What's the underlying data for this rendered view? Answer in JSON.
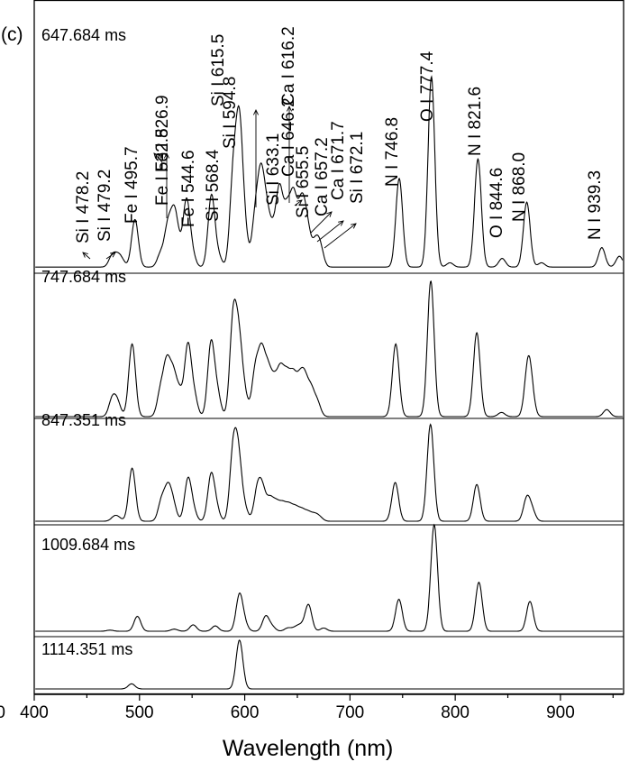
{
  "chart_data": {
    "type": "line",
    "panel_label": "(c)",
    "xlabel": "Wavelength (nm)",
    "ylabel": "",
    "xlim": [
      400,
      960
    ],
    "x_ticks": [
      400,
      500,
      600,
      700,
      800,
      900
    ],
    "x_tick_labels": [
      "400",
      "500",
      "600",
      "700",
      "800",
      "900"
    ],
    "left_cropped_tick_label": "0",
    "grid": false,
    "layout": "stacked panels, top to bottom",
    "peak_width_nm": 3.2,
    "series": [
      {
        "name": "647.684 ms",
        "baseline": 0.02,
        "peaks": [
          [
            474.0,
            0.05
          ],
          [
            479.0,
            0.04
          ],
          [
            483.0,
            0.03
          ],
          [
            495.7,
            0.22
          ],
          [
            520.0,
            0.06
          ],
          [
            526.9,
            0.18
          ],
          [
            532.8,
            0.22
          ],
          [
            537.0,
            0.08
          ],
          [
            544.6,
            0.3
          ],
          [
            550.0,
            0.06
          ],
          [
            568.4,
            0.33
          ],
          [
            575.0,
            0.05
          ],
          [
            589.0,
            0.4
          ],
          [
            594.8,
            0.62
          ],
          [
            600.0,
            0.15
          ],
          [
            610.0,
            0.22
          ],
          [
            615.5,
            0.38
          ],
          [
            621.0,
            0.22
          ],
          [
            627.0,
            0.14
          ],
          [
            633.1,
            0.34
          ],
          [
            640.0,
            0.24
          ],
          [
            646.2,
            0.3
          ],
          [
            652.0,
            0.15
          ],
          [
            655.5,
            0.2
          ],
          [
            660.0,
            0.14
          ],
          [
            667.0,
            0.1
          ],
          [
            671.7,
            0.09
          ],
          [
            746.8,
            0.41
          ],
          [
            777.4,
            0.88
          ],
          [
            795.0,
            0.02
          ],
          [
            821.6,
            0.5
          ],
          [
            844.6,
            0.04
          ],
          [
            868.0,
            0.3
          ],
          [
            882.0,
            0.02
          ],
          [
            939.3,
            0.09
          ],
          [
            956.0,
            0.05
          ]
        ],
        "annotations": [
          {
            "text": "Si I 478.2",
            "x": 478.2
          },
          {
            "text": "Si I 479.2",
            "x": 479.2
          },
          {
            "text": "Fe I 495.7",
            "x": 495.7
          },
          {
            "text": "Fe I 526.9",
            "x": 526.9
          },
          {
            "text": "Fe I 532.8",
            "x": 532.8
          },
          {
            "text": "Fe I 544.6",
            "x": 544.6
          },
          {
            "text": "Si I 568.4",
            "x": 568.4
          },
          {
            "text": "Si I 594.8",
            "x": 594.8
          },
          {
            "text": "Si I 615.5",
            "x": 615.5
          },
          {
            "text": "Si I 633.1",
            "x": 633.1
          },
          {
            "text": "Ca I 616.2",
            "x": 616.2
          },
          {
            "text": "Ca I 646.2",
            "x": 646.2
          },
          {
            "text": "Si I 655.5",
            "x": 655.5
          },
          {
            "text": "Ca I 657.2",
            "x": 657.2
          },
          {
            "text": "Ca I 671.7",
            "x": 671.7
          },
          {
            "text": "Si I 672.1",
            "x": 672.1
          },
          {
            "text": "N I 746.8",
            "x": 746.8
          },
          {
            "text": "O I 777.4",
            "x": 777.4
          },
          {
            "text": "N I 821.6",
            "x": 821.6
          },
          {
            "text": "O I 844.6",
            "x": 844.6
          },
          {
            "text": "N I 868.0",
            "x": 868.0
          },
          {
            "text": "N I 939.3",
            "x": 939.3
          }
        ]
      },
      {
        "name": "747.684 ms",
        "baseline": 0.0,
        "peaks": [
          [
            474.0,
            0.12
          ],
          [
            479.0,
            0.1
          ],
          [
            493.0,
            0.52
          ],
          [
            520.0,
            0.18
          ],
          [
            526.0,
            0.36
          ],
          [
            532.0,
            0.28
          ],
          [
            538.0,
            0.16
          ],
          [
            546.0,
            0.5
          ],
          [
            552.0,
            0.14
          ],
          [
            568.0,
            0.52
          ],
          [
            574.0,
            0.16
          ],
          [
            589.0,
            0.68
          ],
          [
            594.5,
            0.5
          ],
          [
            600.0,
            0.14
          ],
          [
            610.0,
            0.32
          ],
          [
            616.0,
            0.42
          ],
          [
            622.0,
            0.3
          ],
          [
            628.0,
            0.22
          ],
          [
            634.0,
            0.3
          ],
          [
            640.0,
            0.26
          ],
          [
            646.0,
            0.26
          ],
          [
            652.0,
            0.22
          ],
          [
            657.0,
            0.24
          ],
          [
            663.0,
            0.18
          ],
          [
            669.0,
            0.1
          ],
          [
            743.5,
            0.52
          ],
          [
            776.8,
            0.97
          ],
          [
            820.5,
            0.6
          ],
          [
            844.0,
            0.03
          ],
          [
            869.0,
            0.32
          ],
          [
            872.0,
            0.16
          ],
          [
            944.0,
            0.05
          ]
        ]
      },
      {
        "name": "847.351 ms",
        "baseline": 0.0,
        "peaks": [
          [
            476.0,
            0.04
          ],
          [
            480.0,
            0.03
          ],
          [
            493.0,
            0.52
          ],
          [
            521.0,
            0.2
          ],
          [
            527.0,
            0.3
          ],
          [
            532.0,
            0.16
          ],
          [
            546.0,
            0.4
          ],
          [
            551.0,
            0.1
          ],
          [
            568.0,
            0.44
          ],
          [
            573.0,
            0.12
          ],
          [
            589.0,
            0.66
          ],
          [
            594.0,
            0.58
          ],
          [
            600.0,
            0.12
          ],
          [
            612.0,
            0.3
          ],
          [
            617.0,
            0.28
          ],
          [
            624.0,
            0.2
          ],
          [
            630.0,
            0.16
          ],
          [
            636.0,
            0.15
          ],
          [
            642.0,
            0.14
          ],
          [
            648.0,
            0.12
          ],
          [
            654.0,
            0.1
          ],
          [
            660.0,
            0.08
          ],
          [
            666.0,
            0.06
          ],
          [
            671.0,
            0.04
          ],
          [
            743.0,
            0.38
          ],
          [
            776.5,
            0.95
          ],
          [
            820.5,
            0.36
          ],
          [
            868.0,
            0.22
          ],
          [
            873.0,
            0.1
          ]
        ]
      },
      {
        "name": "1009.684 ms",
        "baseline": 0.0,
        "peaks": [
          [
            472.0,
            0.01
          ],
          [
            498.0,
            0.14
          ],
          [
            533.0,
            0.02
          ],
          [
            551.0,
            0.06
          ],
          [
            572.0,
            0.05
          ],
          [
            595.0,
            0.34
          ],
          [
            600.0,
            0.06
          ],
          [
            620.0,
            0.14
          ],
          [
            626.0,
            0.04
          ],
          [
            641.0,
            0.03
          ],
          [
            648.0,
            0.03
          ],
          [
            653.0,
            0.05
          ],
          [
            660.5,
            0.25
          ],
          [
            675.0,
            0.03
          ],
          [
            746.5,
            0.3
          ],
          [
            780.0,
            1.0
          ],
          [
            822.5,
            0.46
          ],
          [
            871.0,
            0.28
          ]
        ]
      },
      {
        "name": "1114.351 ms",
        "baseline": 0.0,
        "peaks": [
          [
            492.5,
            0.1
          ],
          [
            595.0,
            0.95
          ]
        ]
      }
    ]
  }
}
